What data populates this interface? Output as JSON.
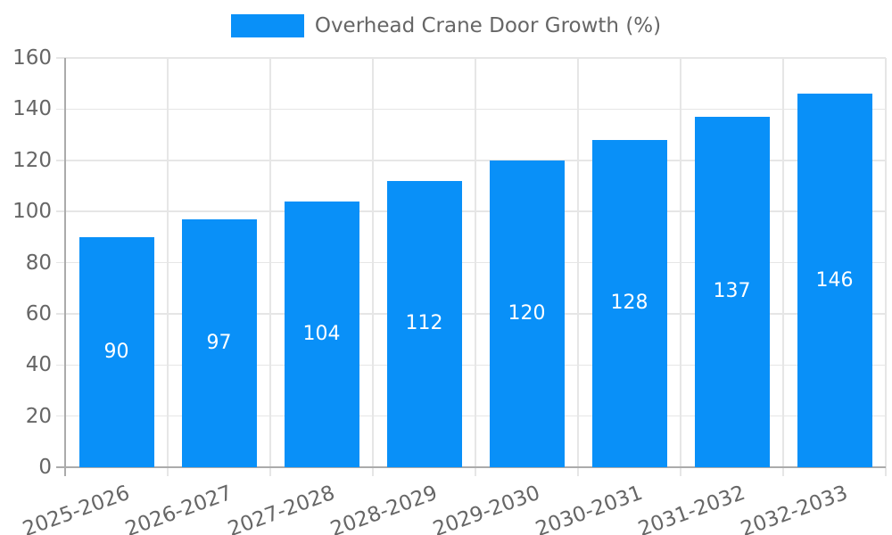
{
  "chart_data": {
    "type": "bar",
    "title": "",
    "legend_label": "Overhead Crane Door Growth (%)",
    "legend_position": "top",
    "categories": [
      "2025-2026",
      "2026-2027",
      "2027-2028",
      "2028-2029",
      "2029-2030",
      "2030-2031",
      "2031-2032",
      "2032-2033"
    ],
    "values": [
      90,
      97,
      104,
      112,
      120,
      128,
      137,
      146
    ],
    "xlabel": "",
    "ylabel": "",
    "ylim": [
      0,
      160
    ],
    "yticks": [
      0,
      20,
      40,
      60,
      80,
      100,
      120,
      140,
      160
    ],
    "grid": "on",
    "value_labels": "inside-center",
    "x_label_rotation_deg": -20,
    "colors": {
      "bar": "#0990f8",
      "value_label": "#ffffff",
      "axis_text": "#666666",
      "legend_text": "#666666",
      "gridline": "#e6e6e6",
      "axis_line": "#ababab",
      "background": "#ffffff"
    }
  }
}
